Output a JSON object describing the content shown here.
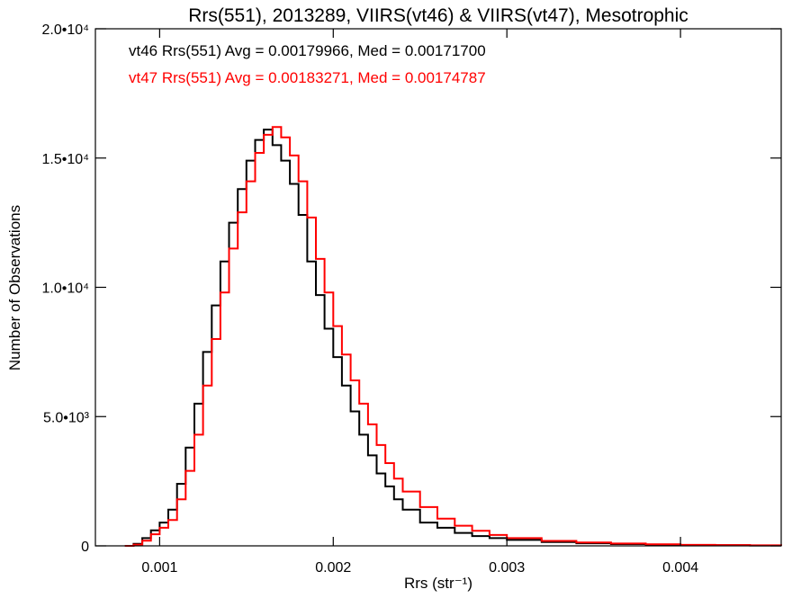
{
  "chart_data": {
    "type": "line",
    "title": "Rrs(551), 2013289, VIIRS(vt46) & VIIRS(vt47), Mesotrophic",
    "xlabel": "Rrs (str⁻¹)",
    "ylabel": "Number of Observations",
    "xlim": [
      0.00063,
      0.00458
    ],
    "ylim": [
      0,
      20000
    ],
    "x_ticks": [
      {
        "value": 0.001,
        "label": "0.001"
      },
      {
        "value": 0.002,
        "label": "0.002"
      },
      {
        "value": 0.003,
        "label": "0.003"
      },
      {
        "value": 0.004,
        "label": "0.004"
      }
    ],
    "y_ticks": [
      {
        "value": 0,
        "label": "0"
      },
      {
        "value": 5000,
        "label": "5.0•10³"
      },
      {
        "value": 10000,
        "label": "1.0•10⁴"
      },
      {
        "value": 15000,
        "label": "1.5•10⁴"
      },
      {
        "value": 20000,
        "label": "2.0•10⁴"
      }
    ],
    "grid": false,
    "legend_position": "top-left",
    "step": true,
    "series": [
      {
        "name": "vt46",
        "color": "#000000",
        "legend": "vt46 Rrs(551) Avg = 0.00179966, Med = 0.00171700",
        "x": [
          0.0008,
          0.00085,
          0.0009,
          0.00095,
          0.001,
          0.00105,
          0.0011,
          0.00115,
          0.0012,
          0.00125,
          0.0013,
          0.00135,
          0.0014,
          0.00145,
          0.0015,
          0.00155,
          0.0016,
          0.00165,
          0.0017,
          0.00175,
          0.0018,
          0.00185,
          0.0019,
          0.00195,
          0.002,
          0.00205,
          0.0021,
          0.00215,
          0.0022,
          0.00225,
          0.0023,
          0.00235,
          0.0024,
          0.0025,
          0.0026,
          0.0027,
          0.0028,
          0.0029,
          0.003,
          0.0032,
          0.0034,
          0.0036,
          0.0038,
          0.004,
          0.0042,
          0.0044,
          0.00458
        ],
        "y": [
          0,
          80,
          300,
          600,
          900,
          1400,
          2400,
          3800,
          5500,
          7500,
          9300,
          11000,
          12500,
          13800,
          14900,
          15700,
          16100,
          15500,
          14900,
          14000,
          12800,
          11000,
          9700,
          8400,
          7300,
          6200,
          5200,
          4300,
          3500,
          2800,
          2300,
          1800,
          1400,
          900,
          700,
          500,
          380,
          300,
          230,
          150,
          100,
          70,
          50,
          35,
          25,
          15,
          10
        ]
      },
      {
        "name": "vt47",
        "color": "#ff0000",
        "legend": "vt47 Rrs(551) Avg = 0.00183271, Med = 0.00174787",
        "x": [
          0.0008,
          0.00085,
          0.0009,
          0.00095,
          0.001,
          0.00105,
          0.0011,
          0.00115,
          0.0012,
          0.00125,
          0.0013,
          0.00135,
          0.0014,
          0.00145,
          0.0015,
          0.00155,
          0.0016,
          0.00165,
          0.0017,
          0.00175,
          0.0018,
          0.00185,
          0.0019,
          0.00195,
          0.002,
          0.00205,
          0.0021,
          0.00215,
          0.0022,
          0.00225,
          0.0023,
          0.00235,
          0.0024,
          0.0025,
          0.0026,
          0.0027,
          0.0028,
          0.0029,
          0.003,
          0.0032,
          0.0034,
          0.0036,
          0.0038,
          0.004,
          0.0042,
          0.0044,
          0.00458
        ],
        "y": [
          0,
          50,
          200,
          450,
          700,
          1000,
          1800,
          2900,
          4300,
          6200,
          8000,
          9800,
          11500,
          12900,
          14100,
          15200,
          15900,
          16200,
          15800,
          15100,
          14100,
          12700,
          11100,
          9800,
          8500,
          7400,
          6400,
          5500,
          4700,
          3900,
          3200,
          2600,
          2100,
          1500,
          1050,
          780,
          580,
          420,
          300,
          190,
          130,
          90,
          60,
          40,
          30,
          20,
          10
        ]
      }
    ]
  }
}
